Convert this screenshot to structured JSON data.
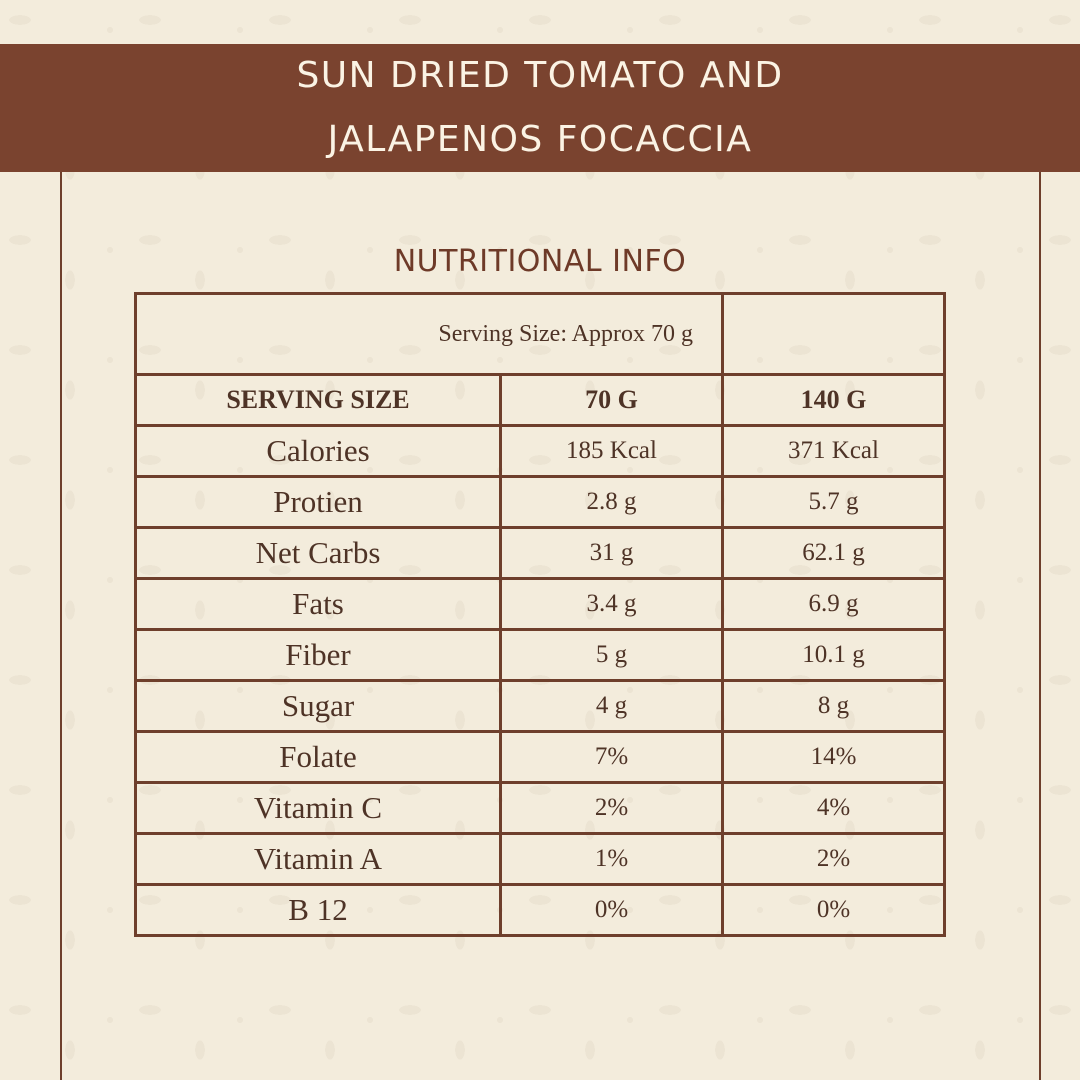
{
  "title_lines": [
    "SUN DRIED TOMATO AND",
    "JALAPENOS FOCACCIA"
  ],
  "section_title": "NUTRITIONAL INFO",
  "serving_note": "Serving Size: Approx 70 g",
  "header": {
    "label": "SERVING SIZE",
    "col1": "70 G",
    "col2": "140 G"
  },
  "rows": [
    {
      "label": "Calories",
      "v1": "185 Kcal",
      "v2": "371 Kcal"
    },
    {
      "label": "Protien",
      "v1": "2.8 g",
      "v2": "5.7 g"
    },
    {
      "label": "Net Carbs",
      "v1": "31 g",
      "v2": "62.1 g"
    },
    {
      "label": "Fats",
      "v1": "3.4 g",
      "v2": "6.9 g"
    },
    {
      "label": "Fiber",
      "v1": "5 g",
      "v2": "10.1 g"
    },
    {
      "label": "Sugar",
      "v1": "4 g",
      "v2": "8 g"
    },
    {
      "label": "Folate",
      "v1": "7%",
      "v2": "14%"
    },
    {
      "label": "Vitamin C",
      "v1": "2%",
      "v2": "4%"
    },
    {
      "label": "Vitamin A",
      "v1": "1%",
      "v2": "2%"
    },
    {
      "label": "B 12",
      "v1": "0%",
      "v2": "0%"
    }
  ],
  "colors": {
    "banner": "#7a432f",
    "background": "#f3ecdc",
    "border": "#6e3f2c"
  }
}
